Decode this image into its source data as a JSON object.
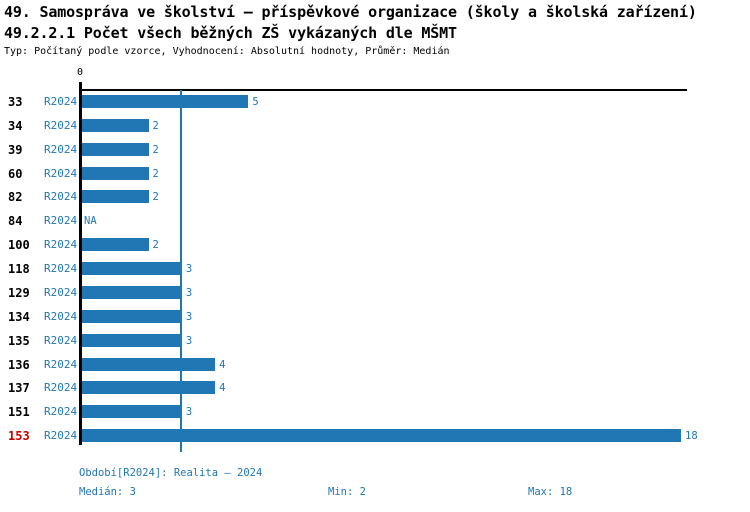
{
  "header": {
    "title": "49. Samospráva ve školství – příspěvkové organizace (školy a školská zařízení)",
    "indicator": "49.2.2.1 Počet všech běžných ZŠ vykázaných dle MŠMT",
    "meta": "Typ: Počítaný podle vzorce, Vyhodnocení: Absolutní hodnoty, Průměr: Medián"
  },
  "colors": {
    "bar_blue": "#2077b4",
    "label_blue": "#2077b4",
    "highlight_red": "#cc0000",
    "axis_black": "#000000",
    "background": "#ffffff"
  },
  "chart_data": {
    "type": "bar",
    "orientation": "horizontal",
    "title": "49.2.2.1 Počet všech běžných ZŠ vykázaných dle MŠMT",
    "categories": [
      "33",
      "34",
      "39",
      "60",
      "82",
      "84",
      "100",
      "118",
      "129",
      "134",
      "135",
      "136",
      "137",
      "151",
      "153"
    ],
    "series_label": "R2024",
    "values": [
      5,
      2,
      2,
      2,
      2,
      null,
      2,
      3,
      3,
      3,
      3,
      4,
      4,
      3,
      18
    ],
    "value_labels": [
      "5",
      "2",
      "2",
      "2",
      "2",
      "NA",
      "2",
      "3",
      "3",
      "3",
      "3",
      "4",
      "4",
      "3",
      "18"
    ],
    "highlighted_category": "153",
    "x_tick_label": "0",
    "xlim": [
      0,
      18.2
    ],
    "median_line_value": 3,
    "grid": false,
    "legend": false,
    "stats": {
      "median": 3,
      "min": 2,
      "max": 18
    }
  },
  "footer": {
    "period": "Období[R2024]: Realita – 2024",
    "median": "Medián: 3",
    "min": "Min: 2",
    "max": "Max: 18"
  }
}
